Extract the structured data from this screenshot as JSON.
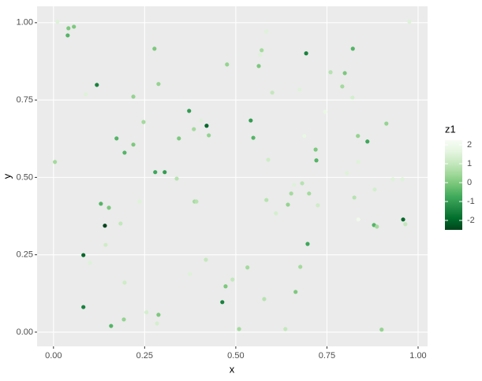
{
  "chart_data": {
    "type": "scatter",
    "x_label": "x",
    "y_label": "y",
    "legend_title": "z1",
    "xlim": [
      -0.045,
      1.026
    ],
    "ylim": [
      -0.046,
      1.053
    ],
    "xticks": [
      {
        "value": 0,
        "label": "0.00"
      },
      {
        "value": 0.25,
        "label": "0.25"
      },
      {
        "value": 0.5,
        "label": "0.50"
      },
      {
        "value": 0.75,
        "label": "0.75"
      },
      {
        "value": 1,
        "label": "1.00"
      }
    ],
    "yticks": [
      {
        "value": 0,
        "label": "0.00"
      },
      {
        "value": 0.25,
        "label": "0.25"
      },
      {
        "value": 0.5,
        "label": "0.50"
      },
      {
        "value": 0.75,
        "label": "0.75"
      },
      {
        "value": 1,
        "label": "1.00"
      }
    ],
    "color_lim": [
      -2.5,
      2.25
    ],
    "color_ticks": [
      -2,
      -1,
      0,
      1,
      2
    ],
    "colors": [
      "#00441b",
      "#006d2c",
      "#238b45",
      "#41ab5d",
      "#74c476",
      "#a1d99b",
      "#c7e9c0",
      "#e5f5e0",
      "#f7fcf5"
    ],
    "grid": true,
    "legend": "right",
    "x": [
      0.011,
      0.041,
      0.056,
      0.039,
      0.004,
      0.089,
      0.119,
      0.082,
      0.082,
      0.1,
      0.13,
      0.141,
      0.152,
      0.143,
      0.173,
      0.184,
      0.195,
      0.219,
      0.219,
      0.158,
      0.193,
      0.195,
      0.236,
      0.247,
      0.255,
      0.277,
      0.288,
      0.279,
      0.305,
      0.284,
      0.288,
      0.338,
      0.344,
      0.372,
      0.385,
      0.405,
      0.42,
      0.426,
      0.387,
      0.392,
      0.374,
      0.418,
      0.476,
      0.541,
      0.548,
      0.584,
      0.571,
      0.567,
      0.563,
      0.6,
      0.589,
      0.584,
      0.61,
      0.643,
      0.652,
      0.66,
      0.682,
      0.675,
      0.688,
      0.693,
      0.701,
      0.719,
      0.721,
      0.725,
      0.697,
      0.677,
      0.664,
      0.636,
      0.578,
      0.532,
      0.491,
      0.472,
      0.463,
      0.509,
      0.745,
      0.76,
      0.792,
      0.799,
      0.821,
      0.82,
      0.805,
      0.835,
      0.836,
      0.825,
      0.836,
      0.861,
      0.881,
      0.879,
      0.887,
      0.913,
      0.931,
      0.957,
      0.959,
      0.965,
      0.976,
      0.9
    ],
    "y": [
      1.003,
      0.982,
      0.987,
      0.959,
      0.55,
      0.768,
      0.799,
      0.249,
      0.081,
      0.224,
      0.415,
      0.344,
      0.402,
      0.282,
      0.626,
      0.351,
      0.58,
      0.761,
      0.606,
      0.02,
      0.041,
      0.16,
      0.422,
      0.679,
      0.064,
      0.916,
      0.802,
      0.517,
      0.517,
      0.028,
      0.056,
      0.496,
      0.626,
      0.715,
      0.656,
      0.684,
      0.667,
      0.636,
      0.422,
      0.422,
      0.188,
      0.234,
      0.865,
      0.684,
      0.628,
      0.972,
      0.911,
      0.896,
      0.86,
      0.774,
      0.557,
      0.427,
      0.384,
      0.412,
      0.448,
      0.476,
      0.481,
      0.784,
      0.634,
      0.901,
      0.448,
      0.59,
      0.555,
      0.41,
      0.285,
      0.211,
      0.13,
      0.01,
      0.107,
      0.209,
      0.17,
      0.148,
      0.097,
      0.01,
      0.712,
      0.84,
      0.794,
      0.837,
      0.916,
      0.758,
      0.514,
      0.634,
      0.55,
      0.435,
      0.364,
      0.616,
      0.461,
      0.346,
      0.341,
      0.674,
      0.494,
      0.494,
      0.364,
      0.349,
      1.003,
      0.008
    ],
    "z": [
      1.5,
      0,
      0,
      -0.5,
      0.5,
      1.5,
      -1.5,
      -2,
      -1.5,
      1.5,
      -0.5,
      -2.5,
      0,
      1.2,
      -0.5,
      1,
      -0.5,
      0.3,
      0,
      -0.5,
      0.3,
      1.2,
      1.5,
      0.5,
      1.3,
      0,
      0.3,
      -0.8,
      -1,
      1.3,
      0,
      0.8,
      0,
      -1,
      0.5,
      1.5,
      -2,
      0.3,
      0.5,
      0.8,
      1.5,
      1,
      0.3,
      -1,
      -0.5,
      1.5,
      0.5,
      1.5,
      0,
      1,
      1.2,
      0.8,
      1.3,
      0.3,
      0.5,
      1.5,
      0.8,
      1.5,
      1.8,
      -1.5,
      0.5,
      0,
      -0.5,
      1.2,
      -0.8,
      0.5,
      0,
      1,
      0.8,
      0.5,
      1,
      0,
      -1.5,
      0.5,
      1.8,
      0.8,
      0.5,
      0,
      -0.5,
      1.3,
      1.5,
      0.3,
      1.5,
      0.8,
      2,
      -0.8,
      1.3,
      -0.5,
      0.5,
      0.3,
      1.5,
      1.5,
      -2,
      1,
      1.5,
      0.3
    ]
  }
}
